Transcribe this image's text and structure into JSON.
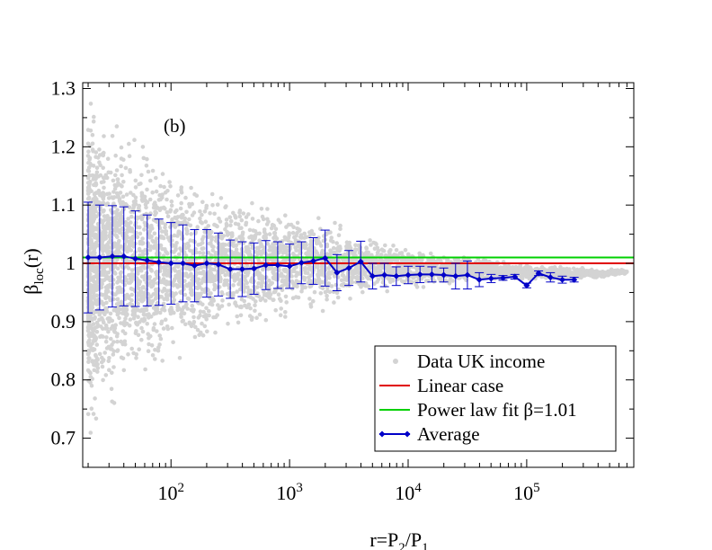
{
  "chart_data": {
    "type": "scatter",
    "panel_label": "(b)",
    "xlabel": "r=P",
    "xlabel_sub1": "2",
    "xlabel_mid": "/P",
    "xlabel_sub2": "1",
    "ylabel": "β",
    "ylabel_sub": "loc",
    "ylabel_suffix": "(r)",
    "xscale": "log",
    "xlim": [
      18,
      800000
    ],
    "ylim": [
      0.65,
      1.31
    ],
    "x_ticks": [
      {
        "value": 100,
        "base": "10",
        "exp": "2"
      },
      {
        "value": 1000,
        "base": "10",
        "exp": "3"
      },
      {
        "value": 10000,
        "base": "10",
        "exp": "4"
      },
      {
        "value": 100000,
        "base": "10",
        "exp": "5"
      }
    ],
    "y_ticks": [
      {
        "value": 0.7,
        "label": "0.7"
      },
      {
        "value": 0.8,
        "label": "0.8"
      },
      {
        "value": 0.9,
        "label": "0.9"
      },
      {
        "value": 1.0,
        "label": "1"
      },
      {
        "value": 1.1,
        "label": "1.1"
      },
      {
        "value": 1.2,
        "label": "1.2"
      },
      {
        "value": 1.3,
        "label": "1.3"
      }
    ],
    "grid": false,
    "legend_position": "bottom-right",
    "legend": [
      {
        "label": "Data UK income",
        "color": "#d3d3d3",
        "kind": "dot"
      },
      {
        "label": "Linear case",
        "color": "#e00000",
        "kind": "line"
      },
      {
        "label": "Power law fit β=1.01",
        "color": "#00d000",
        "kind": "line"
      },
      {
        "label": "Average",
        "color": "#0000c8",
        "kind": "line-marker"
      }
    ],
    "reference_lines": [
      {
        "name": "Linear case",
        "y": 1.0,
        "color": "#e00000"
      },
      {
        "name": "Power law fit β=1.01",
        "y": 1.01,
        "color": "#00d000"
      }
    ],
    "average": {
      "name": "Average",
      "color": "#0000c8",
      "x": [
        20,
        25,
        32,
        40,
        50,
        63,
        79,
        100,
        126,
        158,
        200,
        251,
        316,
        398,
        501,
        631,
        794,
        1000,
        1259,
        1585,
        1995,
        2512,
        3162,
        3981,
        5012,
        6310,
        7943,
        10000,
        12589,
        15849,
        19953,
        25119,
        31623,
        39811,
        50119,
        63096,
        79433,
        100000,
        125893,
        158489,
        199526,
        251189
      ],
      "y": [
        1.01,
        1.01,
        1.012,
        1.012,
        1.008,
        1.005,
        1.002,
        1.0,
        1.0,
        0.996,
        1.0,
        0.998,
        0.99,
        0.99,
        0.991,
        0.997,
        0.997,
        0.995,
        1.001,
        1.004,
        1.009,
        0.984,
        0.992,
        1.003,
        0.978,
        0.98,
        0.978,
        0.98,
        0.981,
        0.981,
        0.98,
        0.978,
        0.98,
        0.972,
        0.974,
        0.975,
        0.977,
        0.962,
        0.983,
        0.976,
        0.972,
        0.972
      ],
      "error": [
        0.095,
        0.09,
        0.087,
        0.085,
        0.082,
        0.078,
        0.074,
        0.07,
        0.066,
        0.062,
        0.058,
        0.054,
        0.05,
        0.047,
        0.044,
        0.042,
        0.04,
        0.038,
        0.036,
        0.04,
        0.048,
        0.031,
        0.03,
        0.035,
        0.022,
        0.02,
        0.016,
        0.015,
        0.014,
        0.013,
        0.012,
        0.022,
        0.024,
        0.012,
        0.007,
        0.004,
        0.004,
        0.004,
        0.004,
        0.008,
        0.006,
        0.004
      ]
    },
    "scatter_envelope": {
      "name": "Data UK income",
      "color": "#d3d3d3",
      "x": [
        20,
        30,
        50,
        100,
        200,
        500,
        1000,
        2000,
        5000,
        10000,
        20000,
        50000,
        100000,
        200000,
        400000,
        700000
      ],
      "lower": [
        0.7,
        0.74,
        0.78,
        0.82,
        0.85,
        0.88,
        0.9,
        0.92,
        0.945,
        0.955,
        0.96,
        0.968,
        0.97,
        0.972,
        0.975,
        0.98
      ],
      "upper": [
        1.3,
        1.27,
        1.23,
        1.19,
        1.15,
        1.12,
        1.1,
        1.08,
        1.05,
        1.03,
        1.02,
        1.01,
        1.0,
        0.995,
        0.99,
        0.99
      ]
    }
  }
}
